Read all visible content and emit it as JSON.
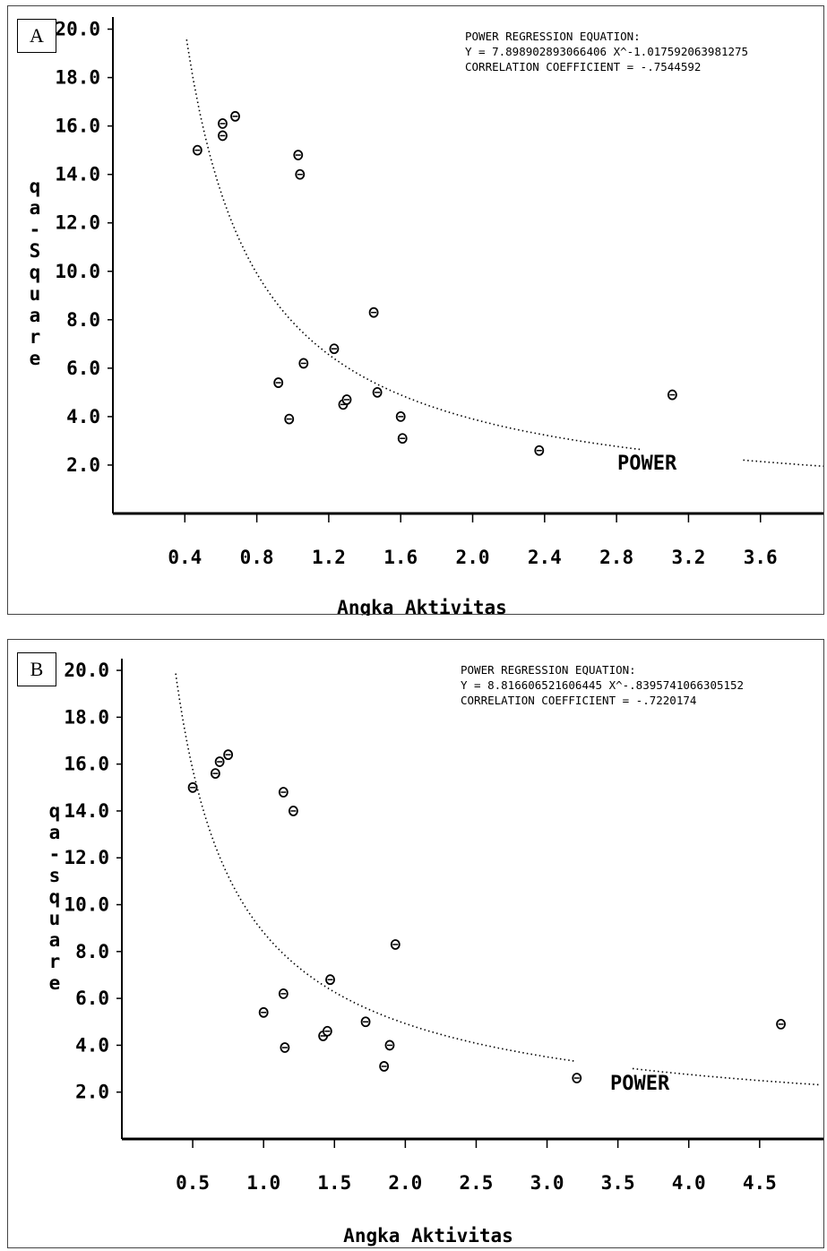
{
  "chart_data": [
    {
      "panel_label": "A",
      "type": "scatter",
      "xlabel": "Angka Aktivitas",
      "ylabel": "qa-Square",
      "xlim": [
        0.0,
        3.95
      ],
      "ylim": [
        0.0,
        20.5
      ],
      "xticks": [
        0.4,
        0.8,
        1.2,
        1.6,
        2.0,
        2.4,
        2.8,
        3.2,
        3.6
      ],
      "xtick_labels": [
        "0.4",
        "0.8",
        "1.2",
        "1.6",
        "2.0",
        "2.4",
        "2.8",
        "3.2",
        "3.6"
      ],
      "yticks": [
        2,
        4,
        6,
        8,
        10,
        12,
        14,
        16,
        18,
        20
      ],
      "ytick_labels": [
        "2.0",
        "4.0",
        "6.0",
        "8.0",
        "10.0",
        "12.0",
        "14.0",
        "16.0",
        "18.0",
        "20.0"
      ],
      "equation_lines": [
        "POWER REGRESSION EQUATION:",
        "Y =  7.898902893066406   X^-1.017592063981275",
        "CORRELATION COEFFICIENT = -.7544592"
      ],
      "fit": {
        "label": "POWER",
        "a": 7.898902893066406,
        "b": -1.017592063981275,
        "x_range": [
          0.41,
          3.95
        ],
        "gap": [
          2.95,
          3.5
        ]
      },
      "points": [
        {
          "x": 0.47,
          "y": 15.0
        },
        {
          "x": 0.61,
          "y": 15.6
        },
        {
          "x": 0.61,
          "y": 16.1
        },
        {
          "x": 0.68,
          "y": 16.4
        },
        {
          "x": 1.03,
          "y": 14.8
        },
        {
          "x": 1.04,
          "y": 14.0
        },
        {
          "x": 1.45,
          "y": 8.3
        },
        {
          "x": 1.23,
          "y": 6.8
        },
        {
          "x": 1.06,
          "y": 6.2
        },
        {
          "x": 0.92,
          "y": 5.4
        },
        {
          "x": 0.98,
          "y": 3.9
        },
        {
          "x": 1.28,
          "y": 4.5
        },
        {
          "x": 1.3,
          "y": 4.7
        },
        {
          "x": 1.47,
          "y": 5.0
        },
        {
          "x": 1.6,
          "y": 4.0
        },
        {
          "x": 1.61,
          "y": 3.1
        },
        {
          "x": 2.37,
          "y": 2.6
        },
        {
          "x": 3.11,
          "y": 4.9
        }
      ]
    },
    {
      "panel_label": "B",
      "type": "scatter",
      "xlabel": "Angka Aktivitas",
      "ylabel": "qa-square",
      "xlim": [
        0.0,
        4.95
      ],
      "ylim": [
        0.0,
        20.5
      ],
      "xticks": [
        0.5,
        1.0,
        1.5,
        2.0,
        2.5,
        3.0,
        3.5,
        4.0,
        4.5
      ],
      "xtick_labels": [
        "0.5",
        "1.0",
        "1.5",
        "2.0",
        "2.5",
        "3.0",
        "3.5",
        "4.0",
        "4.5"
      ],
      "yticks": [
        2,
        4,
        6,
        8,
        10,
        12,
        14,
        16,
        18,
        20
      ],
      "ytick_labels": [
        "2.0",
        "4.0",
        "6.0",
        "8.0",
        "10.0",
        "12.0",
        "14.0",
        "16.0",
        "18.0",
        "20.0"
      ],
      "equation_lines": [
        "POWER REGRESSION EQUATION:",
        "Y =  8.816606521606445   X^-.8395741066305152",
        "CORRELATION COEFFICIENT = -.7220174"
      ],
      "fit": {
        "label": "POWER",
        "a": 8.816606521606445,
        "b": -0.8395741066305152,
        "x_range": [
          0.38,
          4.92
        ],
        "gap": [
          3.2,
          3.6
        ]
      },
      "points": [
        {
          "x": 0.5,
          "y": 15.0
        },
        {
          "x": 0.66,
          "y": 15.6
        },
        {
          "x": 0.69,
          "y": 16.1
        },
        {
          "x": 0.75,
          "y": 16.4
        },
        {
          "x": 1.14,
          "y": 14.8
        },
        {
          "x": 1.21,
          "y": 14.0
        },
        {
          "x": 1.93,
          "y": 8.3
        },
        {
          "x": 1.47,
          "y": 6.8
        },
        {
          "x": 1.14,
          "y": 6.2
        },
        {
          "x": 1.0,
          "y": 5.4
        },
        {
          "x": 1.15,
          "y": 3.9
        },
        {
          "x": 1.42,
          "y": 4.4
        },
        {
          "x": 1.45,
          "y": 4.6
        },
        {
          "x": 1.72,
          "y": 5.0
        },
        {
          "x": 1.89,
          "y": 4.0
        },
        {
          "x": 1.85,
          "y": 3.1
        },
        {
          "x": 3.21,
          "y": 2.6
        },
        {
          "x": 4.65,
          "y": 4.9
        }
      ]
    }
  ]
}
